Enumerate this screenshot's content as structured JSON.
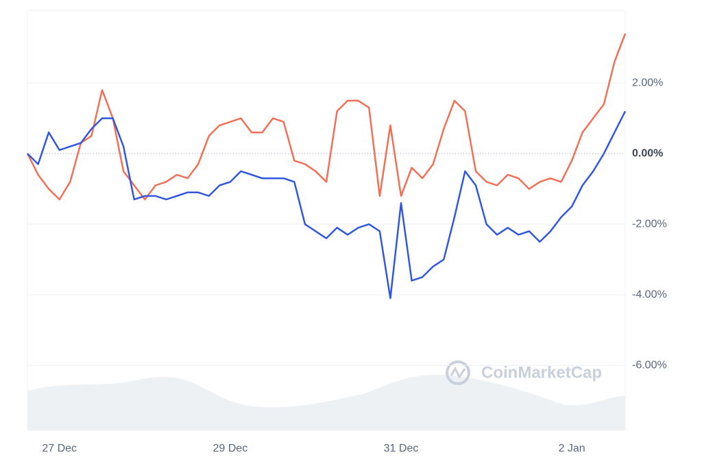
{
  "chart_data": {
    "type": "line",
    "watermark": "CoinMarketCap",
    "categories": [
      null,
      null,
      null,
      "27 Dec",
      null,
      null,
      null,
      null,
      null,
      null,
      null,
      null,
      null,
      null,
      null,
      null,
      null,
      null,
      null,
      "29 Dec",
      null,
      null,
      null,
      null,
      null,
      null,
      null,
      null,
      null,
      null,
      null,
      null,
      null,
      null,
      null,
      "31 Dec",
      null,
      null,
      null,
      null,
      null,
      null,
      null,
      null,
      null,
      null,
      null,
      null,
      null,
      null,
      null,
      "2 Jan",
      null,
      null,
      null,
      null,
      null
    ],
    "series": [
      {
        "color": "#f26f56",
        "values": [
          0,
          -0.6,
          -1.0,
          -1.3,
          -0.8,
          0.3,
          0.5,
          1.8,
          1.0,
          -0.5,
          -0.9,
          -1.3,
          -0.9,
          -0.8,
          -0.6,
          -0.7,
          -0.3,
          0.5,
          0.8,
          0.9,
          1.0,
          0.6,
          0.6,
          1.0,
          0.9,
          -0.2,
          -0.3,
          -0.5,
          -0.8,
          1.2,
          1.5,
          1.5,
          1.3,
          -1.2,
          0.8,
          -1.2,
          -0.4,
          -0.7,
          -0.3,
          0.7,
          1.5,
          1.2,
          -0.5,
          -0.8,
          -0.9,
          -0.6,
          -0.7,
          -1.0,
          -0.8,
          -0.7,
          -0.8,
          -0.2,
          0.6,
          1.0,
          1.4,
          2.6,
          3.4
        ]
      },
      {
        "color": "#3156e0",
        "values": [
          0,
          -0.3,
          0.6,
          0.1,
          0.2,
          0.3,
          0.7,
          1.0,
          1.0,
          0.2,
          -1.3,
          -1.2,
          -1.2,
          -1.3,
          -1.2,
          -1.1,
          -1.1,
          -1.2,
          -0.9,
          -0.8,
          -0.5,
          -0.6,
          -0.7,
          -0.7,
          -0.7,
          -0.8,
          -2.0,
          -2.2,
          -2.4,
          -2.1,
          -2.3,
          -2.1,
          -2.0,
          -2.2,
          -4.1,
          -1.4,
          -3.6,
          -3.5,
          -3.2,
          -3.0,
          -1.8,
          -0.5,
          -0.9,
          -2.0,
          -2.3,
          -2.1,
          -2.3,
          -2.2,
          -2.5,
          -2.2,
          -1.8,
          -1.5,
          -0.9,
          -0.5,
          0.0,
          0.6,
          1.2
        ]
      }
    ],
    "ylim": [
      -7.84,
      4.06
    ],
    "yticks": [
      {
        "value": 2,
        "label": "2.00%"
      },
      {
        "value": 0,
        "label": "0.00%"
      },
      {
        "value": -2,
        "label": "-2.00%"
      },
      {
        "value": -4,
        "label": "-4.00%"
      },
      {
        "value": -6,
        "label": "-6.00%"
      }
    ],
    "grid": true
  }
}
